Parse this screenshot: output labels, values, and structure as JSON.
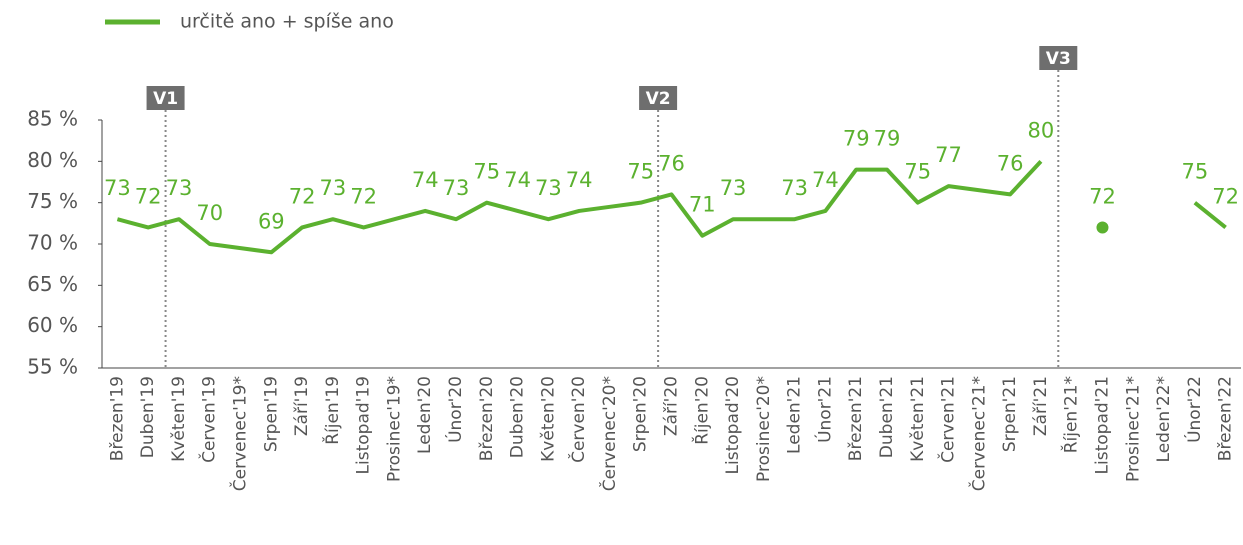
{
  "chart_data": {
    "type": "line",
    "categories": [
      "Březen'19",
      "Duben'19",
      "Květen'19",
      "Červen'19",
      "Červenec'19*",
      "Srpen'19",
      "Září'19",
      "Říjen'19",
      "Listopad'19",
      "Prosinec'19*",
      "Leden'20",
      "Únor'20",
      "Březen'20",
      "Duben'20",
      "Květen'20",
      "Červen'20",
      "Červenec'20*",
      "Srpen'20",
      "Září'20",
      "Říjen'20",
      "Listopad'20",
      "Prosinec'20*",
      "Leden'21",
      "Únor'21",
      "Březen'21",
      "Duben'21",
      "Květen'21",
      "Červen'21",
      "Červenec'21*",
      "Srpen'21",
      "Září'21",
      "Říjen'21*",
      "Listopad'21",
      "Prosinec'21*",
      "Leden'22*",
      "Únor'22",
      "Březen'22"
    ],
    "series": [
      {
        "name": "určitě ano + spíše ano",
        "color": "#5bb12f",
        "values": [
          73,
          72,
          73,
          70,
          69.5,
          69,
          72,
          73,
          72,
          73,
          74,
          73,
          75,
          74,
          73,
          74,
          74.5,
          75,
          76,
          71,
          73,
          73,
          73,
          74,
          79,
          79,
          75,
          77,
          76.5,
          76,
          80,
          null,
          72,
          null,
          null,
          75,
          72
        ],
        "value_labels": [
          "73",
          "72",
          "73",
          "70",
          null,
          "69",
          "72",
          "73",
          "72",
          null,
          "74",
          "73",
          "75",
          "74",
          "73",
          "74",
          null,
          "75",
          "76",
          "71",
          "73",
          null,
          "73",
          "74",
          "79",
          "79",
          "75",
          "77",
          null,
          "76",
          "80",
          null,
          "72",
          null,
          null,
          "75",
          "72"
        ]
      }
    ],
    "ylim": [
      55,
      85
    ],
    "yticks": [
      {
        "value": 55,
        "label": "55 %"
      },
      {
        "value": 60,
        "label": "60 %"
      },
      {
        "value": 65,
        "label": "65 %"
      },
      {
        "value": 70,
        "label": "70 %"
      },
      {
        "value": 75,
        "label": "75 %"
      },
      {
        "value": 80,
        "label": "80 %"
      },
      {
        "value": 85,
        "label": "85 %"
      }
    ],
    "grid": false,
    "legend": "top-left",
    "annotations": [
      {
        "label": "V1",
        "category": "Květen'19"
      },
      {
        "label": "V2",
        "category": "Září'20"
      },
      {
        "label": "V3",
        "category": "Říjen'21*"
      }
    ]
  }
}
